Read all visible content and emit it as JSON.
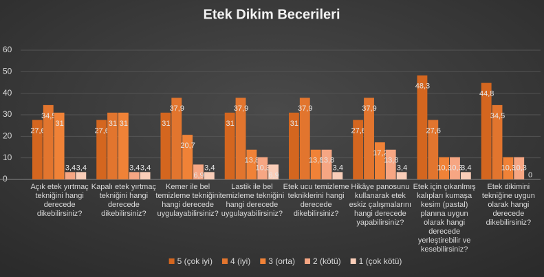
{
  "chart_data": {
    "type": "bar",
    "title": "Etek Dikim Becerileri",
    "categories": [
      "Açık etek yırtmaç tekniğini hangi derecede dikebilirsiniz?",
      "Kapalı etek yırtmaç tekniğini hangi derecede dikebilirsiniz?",
      "Kemer ile bel temizleme tekniğini hangi derecede uygulayabilirsiniz?",
      "Lastik ile bel temizleme tekniğini hangi derecede uygulayabilirsiniz?",
      "Etek ucu temizleme tekniklerini hangi derecede dikebilirsiniz?",
      "Hikâye panosunu kullanarak etek eskiz çalışmalarını hangi derecede yapabilirsiniz?",
      "Etek için çıkanlmış kalıpları kumaşa kesim (pastal) planına uygun olarak hangi derecede yerleştirebilir ve kesebilirsiniz?",
      "Etek dikimini tekniğine uygun olarak hangi derecede dikebilirsiniz?"
    ],
    "series": [
      {
        "name": "5 (çok iyi)",
        "color": "#d4661f",
        "values": [
          27.6,
          27.6,
          31,
          31,
          31,
          27.6,
          48.3,
          44.8
        ],
        "value_labels": [
          "27,6",
          "27,6",
          "31",
          "31",
          "31",
          "27,6",
          "48,3",
          "44,8"
        ]
      },
      {
        "name": "4 (iyi)",
        "color": "#e2752e",
        "values": [
          34.5,
          31,
          37.9,
          37.9,
          37.9,
          37.9,
          27.6,
          34.5
        ],
        "value_labels": [
          "34,5",
          "31",
          "37,9",
          "37,9",
          "37,9",
          "37,9",
          "27,6",
          "34,5"
        ]
      },
      {
        "name": "3 (orta)",
        "color": "#f08237",
        "values": [
          31,
          31,
          20.7,
          13.8,
          13.8,
          17.2,
          10.3,
          10.3
        ],
        "value_labels": [
          "31",
          "31",
          "20,7",
          "13,8",
          "13,8",
          "17,2",
          "10,3",
          "10,3"
        ]
      },
      {
        "name": "2 (kötü)",
        "color": "#f6a683",
        "values": [
          3.4,
          3.4,
          6.9,
          10.3,
          13.8,
          13.8,
          10.3,
          10.3
        ],
        "value_labels": [
          "3,4",
          "3,4",
          "6,9",
          "10,3",
          "13,8",
          "13,8",
          "10,3",
          "10,3"
        ]
      },
      {
        "name": "1 (çok kötü)",
        "color": "#f9cdb8",
        "values": [
          3.4,
          3.4,
          3.4,
          6.9,
          3.4,
          3.4,
          3.4,
          0
        ],
        "value_labels": [
          "3,4",
          "3,4",
          "3,4",
          "6,9",
          "3,4",
          "3,4",
          "3,4",
          "0"
        ]
      }
    ],
    "ylim": [
      0,
      60
    ],
    "yticks": [
      0,
      10,
      20,
      30,
      40,
      50,
      60
    ],
    "grid": true,
    "legend": "bottom"
  }
}
